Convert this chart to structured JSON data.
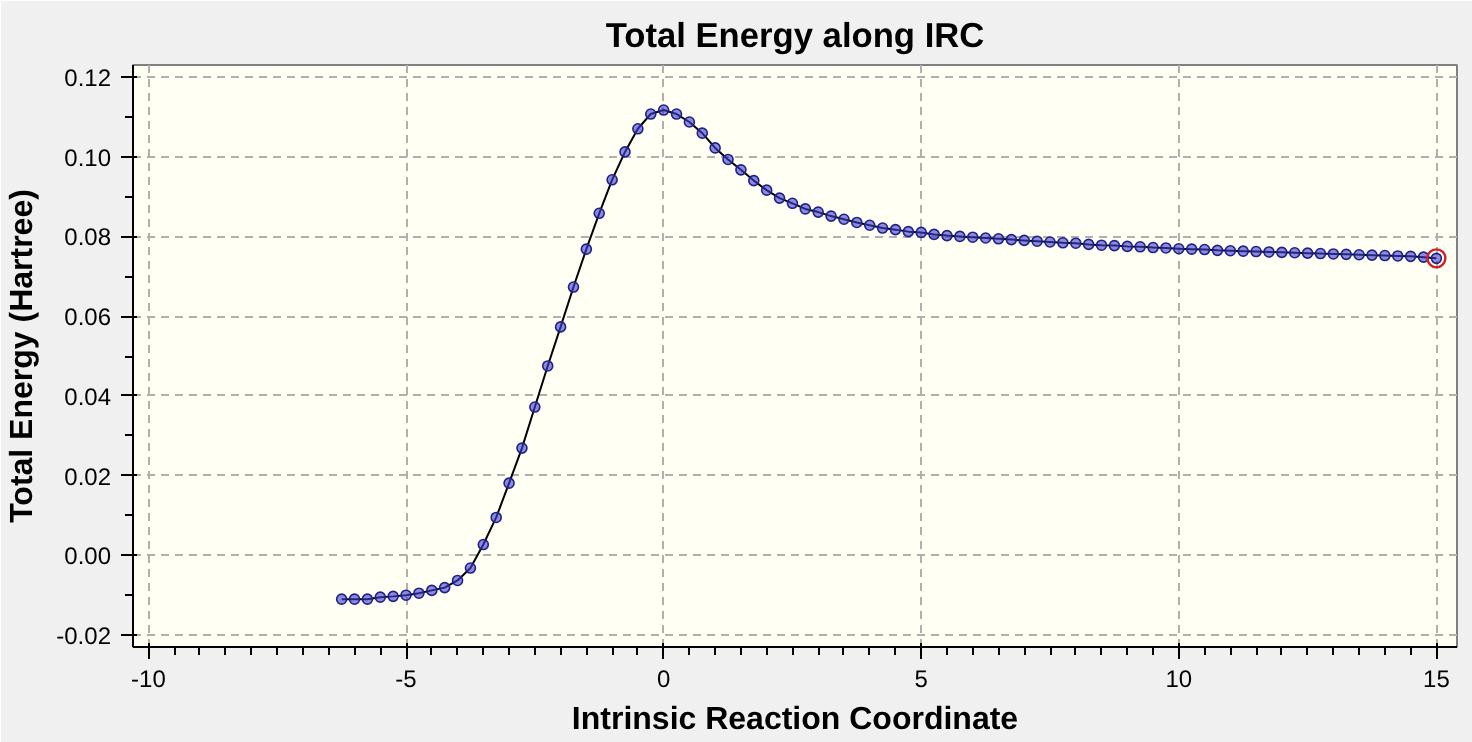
{
  "chart_data": {
    "type": "line",
    "title": "Total Energy along IRC",
    "xlabel": "Intrinsic Reaction Coordinate",
    "ylabel": "Total Energy (Hartree)",
    "xlim": [
      -10.3,
      15.4
    ],
    "ylim": [
      -0.023,
      0.123
    ],
    "xticks": [
      -10,
      -5,
      0,
      5,
      10,
      15
    ],
    "yticks": [
      {
        "value": -0.02,
        "label": "-0.02"
      },
      {
        "value": 0,
        "label": "0.00"
      },
      {
        "value": 0.02,
        "label": "0.02"
      },
      {
        "value": 0.04,
        "label": "0.04"
      },
      {
        "value": 0.06,
        "label": "0.06"
      },
      {
        "value": 0.08,
        "label": "0.08"
      },
      {
        "value": 0.1,
        "label": "0.10"
      },
      {
        "value": 0.12,
        "label": "0.12"
      }
    ],
    "grid": true,
    "marker": "circle",
    "line_style": "solid",
    "series": [
      {
        "color": "#4040d0",
        "x": [
          -6.25,
          -6.0,
          -5.75,
          -5.5,
          -5.25,
          -5.0,
          -4.75,
          -4.5,
          -4.25,
          -4.0,
          -3.75,
          -3.5,
          -3.25,
          -3.0,
          -2.75,
          -2.5,
          -2.25,
          -2.0,
          -1.75,
          -1.5,
          -1.25,
          -1.0,
          -0.75,
          -0.5,
          -0.25,
          0.0,
          0.25,
          0.5,
          0.75,
          1.0,
          1.25,
          1.5,
          1.75,
          2.0,
          2.25,
          2.5,
          2.75,
          3.0,
          3.25,
          3.5,
          3.75,
          4.0,
          4.25,
          4.5,
          4.75,
          5.0,
          5.25,
          5.5,
          5.75,
          6.0,
          6.25,
          6.5,
          6.75,
          7.0,
          7.25,
          7.5,
          7.75,
          8.0,
          8.25,
          8.5,
          8.75,
          9.0,
          9.25,
          9.5,
          9.75,
          10.0,
          10.25,
          10.5,
          10.75,
          11.0,
          11.25,
          11.5,
          11.75,
          12.0,
          12.25,
          12.5,
          12.75,
          13.0,
          13.25,
          13.5,
          13.75,
          14.0,
          14.25,
          14.5,
          14.75,
          15.0
        ],
        "values": [
          -0.011,
          -0.011,
          -0.011,
          -0.0105,
          -0.0103,
          -0.01,
          -0.0095,
          -0.0088,
          -0.0081,
          -0.0063,
          -0.0032,
          0.0027,
          0.0095,
          0.0181,
          0.0269,
          0.0372,
          0.0475,
          0.0573,
          0.0673,
          0.0768,
          0.0858,
          0.0942,
          0.1012,
          0.107,
          0.1107,
          0.1117,
          0.1107,
          0.1087,
          0.1059,
          0.1022,
          0.0993,
          0.0967,
          0.094,
          0.0916,
          0.0896,
          0.0883,
          0.0869,
          0.0861,
          0.0851,
          0.0843,
          0.0835,
          0.0828,
          0.0821,
          0.0817,
          0.0812,
          0.081,
          0.0805,
          0.0802,
          0.08,
          0.0798,
          0.0796,
          0.0794,
          0.0792,
          0.079,
          0.0788,
          0.0786,
          0.0784,
          0.0783,
          0.078,
          0.0778,
          0.0777,
          0.0775,
          0.0774,
          0.0772,
          0.0771,
          0.0769,
          0.0768,
          0.0767,
          0.0765,
          0.0764,
          0.0763,
          0.0762,
          0.0761,
          0.076,
          0.0759,
          0.0758,
          0.0757,
          0.0756,
          0.0755,
          0.0754,
          0.0753,
          0.0752,
          0.0751,
          0.075,
          0.0748,
          0.0745
        ]
      },
      {
        "type": "scatter",
        "color": "#d02020",
        "x": [
          15.0
        ],
        "values": [
          0.0745
        ]
      }
    ]
  }
}
